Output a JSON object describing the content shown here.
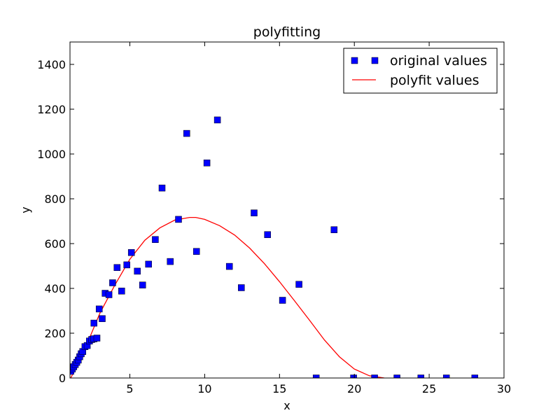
{
  "chart_data": {
    "type": "scatter",
    "title": "polyfitting",
    "xlabel": "x",
    "ylabel": "y",
    "xlim": [
      1,
      30
    ],
    "ylim": [
      0,
      1500
    ],
    "xticks": [
      5,
      10,
      15,
      20,
      25,
      30
    ],
    "yticks": [
      0,
      200,
      400,
      600,
      800,
      1000,
      1200,
      1400
    ],
    "grid": false,
    "legend_position": "top-right",
    "series": [
      {
        "name": "original values",
        "kind": "scatter",
        "marker": "square",
        "color": "#0000ff",
        "points": [
          [
            1.05,
            30
          ],
          [
            1.15,
            40
          ],
          [
            1.25,
            50
          ],
          [
            1.35,
            60
          ],
          [
            1.45,
            70
          ],
          [
            1.55,
            80
          ],
          [
            1.65,
            95
          ],
          [
            1.75,
            108
          ],
          [
            1.85,
            118
          ],
          [
            2.0,
            140
          ],
          [
            2.15,
            145
          ],
          [
            2.3,
            165
          ],
          [
            2.45,
            172
          ],
          [
            2.6,
            175
          ],
          [
            2.6,
            245
          ],
          [
            2.8,
            178
          ],
          [
            2.95,
            308
          ],
          [
            3.15,
            265
          ],
          [
            3.35,
            378
          ],
          [
            3.6,
            372
          ],
          [
            3.85,
            425
          ],
          [
            4.15,
            493
          ],
          [
            4.45,
            388
          ],
          [
            4.8,
            505
          ],
          [
            5.1,
            560
          ],
          [
            5.5,
            477
          ],
          [
            5.85,
            415
          ],
          [
            6.25,
            508
          ],
          [
            6.7,
            618
          ],
          [
            7.15,
            848
          ],
          [
            7.7,
            520
          ],
          [
            8.25,
            708
          ],
          [
            8.8,
            1092
          ],
          [
            9.45,
            565
          ],
          [
            10.15,
            960
          ],
          [
            10.85,
            1152
          ],
          [
            11.65,
            498
          ],
          [
            12.45,
            403
          ],
          [
            13.3,
            737
          ],
          [
            14.2,
            640
          ],
          [
            15.2,
            347
          ],
          [
            16.3,
            418
          ],
          [
            17.45,
            0
          ],
          [
            18.65,
            662
          ],
          [
            19.95,
            0
          ],
          [
            21.35,
            0
          ],
          [
            22.85,
            0
          ],
          [
            24.45,
            0
          ],
          [
            26.15,
            0
          ],
          [
            28.05,
            0
          ]
        ]
      },
      {
        "name": "polyfit values",
        "kind": "line",
        "color": "#ff0000",
        "x": [
          1.05,
          2.0,
          3.0,
          4.0,
          5.0,
          6.0,
          7.0,
          8.0,
          9.0,
          9.4,
          10.0,
          11.0,
          12.0,
          13.0,
          14.0,
          15.0,
          16.0,
          17.0,
          18.0,
          19.0,
          20.0,
          21.0,
          22.0,
          23.0,
          23.3
        ],
        "y": [
          0,
          130,
          290,
          415,
          530,
          615,
          670,
          705,
          717,
          717,
          708,
          680,
          638,
          580,
          510,
          430,
          345,
          258,
          170,
          95,
          40,
          10,
          0,
          -5,
          -10
        ]
      }
    ]
  }
}
